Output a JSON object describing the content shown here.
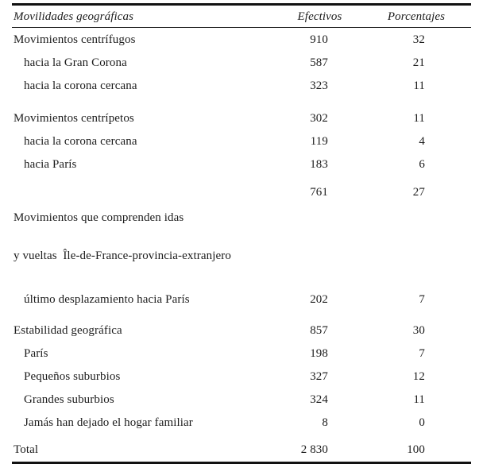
{
  "page": {
    "background": "#ffffff",
    "text_color": "#1c1c1c",
    "rule_color": "#111111"
  },
  "table": {
    "columns": [
      {
        "label": "Movilidades geográficas"
      },
      {
        "label": "Efectivos"
      },
      {
        "label": "Porcentajes"
      }
    ],
    "rows": [
      {
        "label": "Movimientos centrífugos",
        "efectivos": "910",
        "porcentajes": "32"
      },
      {
        "label": "hacia la Gran Corona",
        "efectivos": "587",
        "porcentajes": "21"
      },
      {
        "label": "hacia la corona cercana",
        "efectivos": "323",
        "porcentajes": "11"
      },
      {
        "label": "Movimientos centrípetos",
        "efectivos": "302",
        "porcentajes": "11"
      },
      {
        "label": "hacia la corona cercana",
        "efectivos": "119",
        "porcentajes": "4"
      },
      {
        "label": "hacia París",
        "efectivos": "183",
        "porcentajes": "6"
      },
      {
        "label": "Movimientos que comprenden idas",
        "label_line2": "y vueltas  Île-de-France-provincia-extranjero",
        "efectivos": "761",
        "porcentajes": "27"
      },
      {
        "label": "último desplazamiento hacia París",
        "efectivos": "202",
        "porcentajes": "7"
      },
      {
        "label": "Estabilidad geográfica",
        "efectivos": "857",
        "porcentajes": "30"
      },
      {
        "label": "París",
        "efectivos": "198",
        "porcentajes": "7"
      },
      {
        "label": "Pequeños suburbios",
        "efectivos": "327",
        "porcentajes": "12"
      },
      {
        "label": "Grandes suburbios",
        "efectivos": "324",
        "porcentajes": "11"
      },
      {
        "label": "Jamás han dejado el hogar familiar",
        "efectivos": "8",
        "porcentajes": "0"
      },
      {
        "label": "Total",
        "efectivos": "2 830",
        "porcentajes": "100"
      }
    ]
  }
}
